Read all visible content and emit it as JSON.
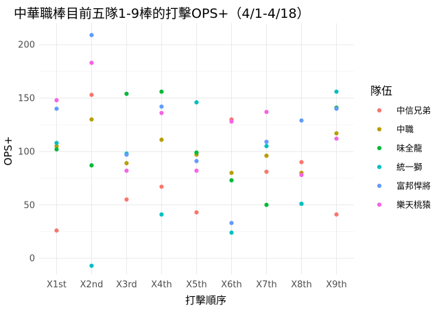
{
  "chart_data": {
    "type": "scatter",
    "title": "中華職棒目前五隊1-9棒的打擊OPS+（4/1-4/18）",
    "xlabel": "打擊順序",
    "ylabel": "OPS+",
    "categories": [
      "X1st",
      "X2nd",
      "X3rd",
      "X4th",
      "X5th",
      "X6th",
      "X7th",
      "X8th",
      "X9th"
    ],
    "ylim": [
      -15,
      220
    ],
    "yticks": [
      0,
      50,
      100,
      150,
      200
    ],
    "grid": true,
    "legend": {
      "title": "隊伍",
      "position": "right"
    },
    "series": [
      {
        "name": "中信兄弟",
        "color": "#F8766D",
        "values": [
          26,
          153,
          55,
          67,
          43,
          130,
          81,
          90,
          41
        ]
      },
      {
        "name": "中職",
        "color": "#B79F00",
        "values": [
          105,
          130,
          89,
          111,
          97,
          80,
          96,
          80,
          117
        ]
      },
      {
        "name": "味全龍",
        "color": "#00BA38",
        "values": [
          102,
          87,
          154,
          156,
          99,
          73,
          50,
          51,
          141
        ]
      },
      {
        "name": "統一獅",
        "color": "#00BFC4",
        "values": [
          108,
          -7,
          98,
          41,
          146,
          24,
          105,
          51,
          156
        ]
      },
      {
        "name": "富邦悍將",
        "color": "#619CFF",
        "values": [
          140,
          209,
          97,
          142,
          91,
          33,
          109,
          129,
          140
        ]
      },
      {
        "name": "樂天桃猿",
        "color": "#F564E3",
        "values": [
          148,
          183,
          82,
          136,
          82,
          128,
          137,
          78,
          112
        ]
      }
    ]
  }
}
